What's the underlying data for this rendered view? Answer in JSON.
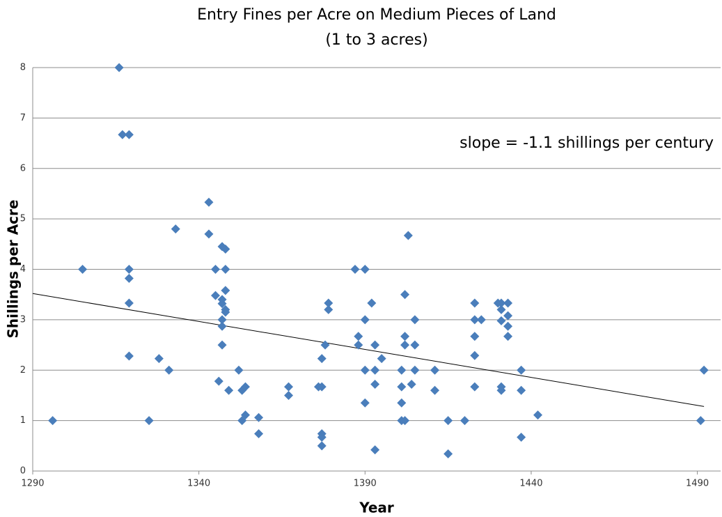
{
  "chart_data": {
    "type": "scatter",
    "title": "Entry Fines per Acre on Medium Pieces of Land",
    "subtitle": "(1 to 3 acres)",
    "x_label": "Year",
    "y_label": "Shillings per Acre",
    "annotation": "slope = -1.1 shillings per century",
    "color": "#4a7ebb",
    "grid": true,
    "xlim": [
      1290,
      1497
    ],
    "xticks": [
      1290,
      1340,
      1390,
      1440,
      1490
    ],
    "ylim": [
      0,
      8
    ],
    "yticks": [
      0,
      1,
      2,
      3,
      4,
      5,
      6,
      7,
      8
    ],
    "trendline": {
      "x": [
        1290,
        1492
      ],
      "y": [
        3.52,
        1.28
      ]
    },
    "x": [
      1296,
      1305,
      1316,
      1317,
      1319,
      1319,
      1319,
      1319,
      1319,
      1325,
      1328,
      1331,
      1333,
      1343,
      1343,
      1345,
      1345,
      1346,
      1347,
      1347,
      1347,
      1347,
      1347,
      1347,
      1348,
      1348,
      1348,
      1348,
      1348,
      1349,
      1352,
      1353,
      1353,
      1354,
      1354,
      1358,
      1358,
      1367,
      1367,
      1376,
      1377,
      1377,
      1377,
      1377,
      1377,
      1378,
      1379,
      1379,
      1387,
      1388,
      1388,
      1390,
      1390,
      1390,
      1390,
      1392,
      1393,
      1393,
      1393,
      1393,
      1395,
      1401,
      1401,
      1401,
      1401,
      1402,
      1402,
      1402,
      1402,
      1403,
      1404,
      1405,
      1405,
      1405,
      1411,
      1411,
      1415,
      1415,
      1420,
      1423,
      1423,
      1423,
      1423,
      1423,
      1425,
      1430,
      1431,
      1431,
      1431,
      1431,
      1431,
      1433,
      1433,
      1433,
      1433,
      1437,
      1437,
      1437,
      1442,
      1491,
      1492
    ],
    "values": [
      1,
      4,
      8,
      6.67,
      6.67,
      4,
      3.82,
      3.33,
      2.28,
      1,
      2.23,
      2,
      4.8,
      5.33,
      4.7,
      4,
      3.48,
      1.78,
      4.45,
      3.4,
      3.32,
      3,
      2.87,
      2.5,
      4.4,
      4,
      3.58,
      3.2,
      3.15,
      1.6,
      2,
      1,
      1.6,
      1.67,
      1.11,
      1.06,
      0.74,
      1.67,
      1.5,
      1.67,
      1.67,
      2.23,
      0.74,
      0.67,
      0.5,
      2.5,
      3.33,
      3.2,
      4,
      2.67,
      2.5,
      4,
      3,
      2,
      1.35,
      3.33,
      2.5,
      2,
      1.72,
      0.42,
      2.23,
      2,
      1.67,
      1.35,
      1,
      3.5,
      2.67,
      2.5,
      1,
      4.67,
      1.72,
      3,
      2.5,
      2,
      2,
      1.6,
      1,
      0.34,
      1,
      3.33,
      3,
      2.67,
      2.29,
      1.67,
      3,
      3.33,
      3.33,
      3.2,
      2.98,
      1.67,
      1.6,
      3.33,
      3.08,
      2.87,
      2.67,
      2,
      1.6,
      0.67,
      1.11,
      1,
      2
    ]
  }
}
